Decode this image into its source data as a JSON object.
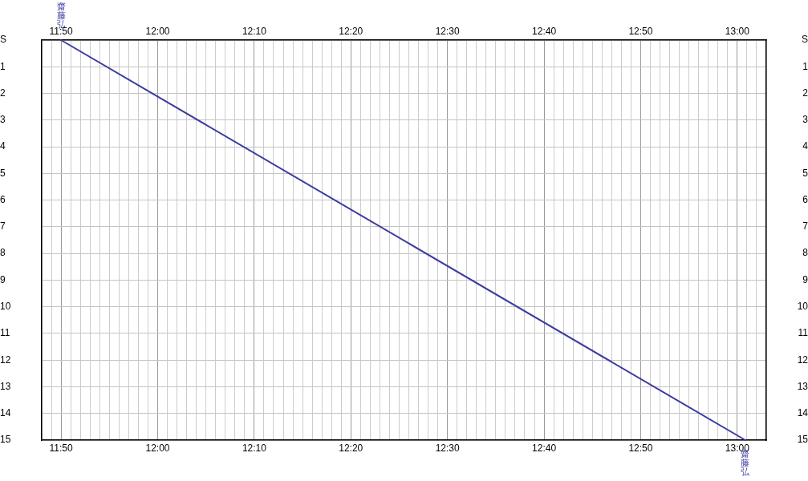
{
  "chart_data": {
    "type": "line",
    "x": [
      11.8333,
      13.0139
    ],
    "series": [
      {
        "color": "#3c3ca0",
        "values": [
          0,
          15
        ]
      }
    ],
    "xlim": [
      11.8,
      13.05
    ],
    "xticks": [
      {
        "value": 11.8,
        "label": null
      },
      {
        "value": 11.8167,
        "label": null
      },
      {
        "value": 11.8333,
        "label": "11:50"
      },
      {
        "value": 11.85,
        "label": null
      },
      {
        "value": 11.8667,
        "label": null
      },
      {
        "value": 11.8833,
        "label": null
      },
      {
        "value": 11.9,
        "label": null
      },
      {
        "value": 11.9167,
        "label": null
      },
      {
        "value": 11.9333,
        "label": null
      },
      {
        "value": 11.95,
        "label": null
      },
      {
        "value": 11.9667,
        "label": null
      },
      {
        "value": 11.9833,
        "label": null
      },
      {
        "value": 12,
        "label": "12:00"
      },
      {
        "value": 12.0167,
        "label": null
      },
      {
        "value": 12.0333,
        "label": null
      },
      {
        "value": 12.05,
        "label": null
      },
      {
        "value": 12.0667,
        "label": null
      },
      {
        "value": 12.0833,
        "label": null
      },
      {
        "value": 12.1,
        "label": null
      },
      {
        "value": 12.1167,
        "label": null
      },
      {
        "value": 12.1333,
        "label": null
      },
      {
        "value": 12.15,
        "label": null
      },
      {
        "value": 12.1667,
        "label": "12:10"
      },
      {
        "value": 12.1833,
        "label": null
      },
      {
        "value": 12.2,
        "label": null
      },
      {
        "value": 12.2167,
        "label": null
      },
      {
        "value": 12.2333,
        "label": null
      },
      {
        "value": 12.25,
        "label": null
      },
      {
        "value": 12.2667,
        "label": null
      },
      {
        "value": 12.2833,
        "label": null
      },
      {
        "value": 12.3,
        "label": null
      },
      {
        "value": 12.3167,
        "label": null
      },
      {
        "value": 12.3333,
        "label": "12:20"
      },
      {
        "value": 12.35,
        "label": null
      },
      {
        "value": 12.3667,
        "label": null
      },
      {
        "value": 12.3833,
        "label": null
      },
      {
        "value": 12.4,
        "label": null
      },
      {
        "value": 12.4167,
        "label": null
      },
      {
        "value": 12.4333,
        "label": null
      },
      {
        "value": 12.45,
        "label": null
      },
      {
        "value": 12.4667,
        "label": null
      },
      {
        "value": 12.4833,
        "label": null
      },
      {
        "value": 12.5,
        "label": "12:30"
      },
      {
        "value": 12.5167,
        "label": null
      },
      {
        "value": 12.5333,
        "label": null
      },
      {
        "value": 12.55,
        "label": null
      },
      {
        "value": 12.5667,
        "label": null
      },
      {
        "value": 12.5833,
        "label": null
      },
      {
        "value": 12.6,
        "label": null
      },
      {
        "value": 12.6167,
        "label": null
      },
      {
        "value": 12.6333,
        "label": null
      },
      {
        "value": 12.65,
        "label": null
      },
      {
        "value": 12.6667,
        "label": "12:40"
      },
      {
        "value": 12.6833,
        "label": null
      },
      {
        "value": 12.7,
        "label": null
      },
      {
        "value": 12.7167,
        "label": null
      },
      {
        "value": 12.7333,
        "label": null
      },
      {
        "value": 12.75,
        "label": null
      },
      {
        "value": 12.7667,
        "label": null
      },
      {
        "value": 12.7833,
        "label": null
      },
      {
        "value": 12.8,
        "label": null
      },
      {
        "value": 12.8167,
        "label": null
      },
      {
        "value": 12.8333,
        "label": "12:50"
      },
      {
        "value": 12.85,
        "label": null
      },
      {
        "value": 12.8667,
        "label": null
      },
      {
        "value": 12.8833,
        "label": null
      },
      {
        "value": 12.9,
        "label": null
      },
      {
        "value": 12.9167,
        "label": null
      },
      {
        "value": 12.9333,
        "label": null
      },
      {
        "value": 12.95,
        "label": null
      },
      {
        "value": 12.9667,
        "label": null
      },
      {
        "value": 12.9833,
        "label": null
      },
      {
        "value": 13,
        "label": "13:00"
      },
      {
        "value": 13.0167,
        "label": null
      },
      {
        "value": 13.0333,
        "label": null
      },
      {
        "value": 13.05,
        "label": null
      }
    ],
    "x2lim": [
      11.8,
      13.05
    ],
    "x2ticks": [
      {
        "value": 11.8333,
        "label": "11:50"
      },
      {
        "value": 12,
        "label": "12:00"
      },
      {
        "value": 12.1667,
        "label": "12:10"
      },
      {
        "value": 12.3333,
        "label": "12:20"
      },
      {
        "value": 12.5,
        "label": "12:30"
      },
      {
        "value": 12.6667,
        "label": "12:40"
      },
      {
        "value": 12.8333,
        "label": "12:50"
      },
      {
        "value": 13,
        "label": "13:00"
      }
    ],
    "ylim": [
      15,
      0
    ],
    "yticks": [
      {
        "value": 0,
        "label": "S"
      },
      1,
      2,
      3,
      4,
      5,
      6,
      7,
      8,
      9,
      10,
      11,
      12,
      13,
      14,
      15
    ],
    "y2lim": [
      15,
      0
    ],
    "y2ticks": [
      {
        "value": 0,
        "label": "S"
      },
      1,
      2,
      3,
      4,
      5,
      6,
      7,
      8,
      9,
      10,
      11,
      12,
      13,
      14,
      15
    ],
    "annotations": [
      {
        "text": "齋藤弘",
        "x": 11.8333,
        "y": 0
      },
      {
        "text": "齋藤弘",
        "x": 13.0139,
        "y": 15
      }
    ],
    "grid": true,
    "marker": "none",
    "line_style": "solid"
  }
}
